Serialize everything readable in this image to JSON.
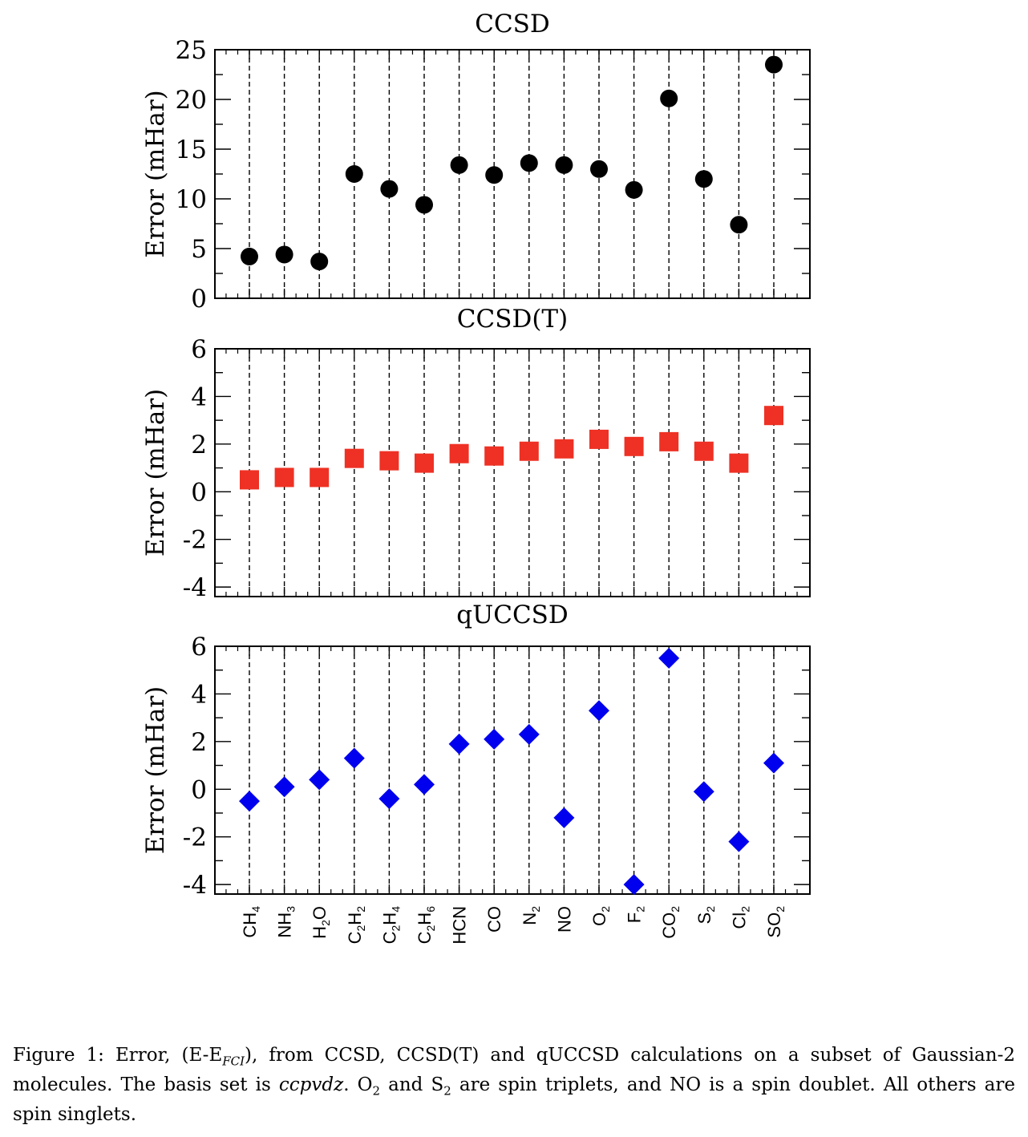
{
  "chart_data": [
    {
      "type": "scatter",
      "title": "CCSD",
      "ylabel": "Error (mHar)",
      "ylim": [
        0,
        25
      ],
      "yticks": [
        "0",
        "5",
        "10",
        "15",
        "20",
        "25"
      ],
      "marker": "circle",
      "color": "#000000",
      "categories": [
        "CH4",
        "NH3",
        "H2O",
        "C2H2",
        "C2H4",
        "C2H6",
        "HCN",
        "CO",
        "N2",
        "NO",
        "O2",
        "F2",
        "CO2",
        "S2",
        "Cl2",
        "SO2"
      ],
      "values": [
        4.2,
        4.4,
        3.7,
        12.5,
        11.0,
        9.4,
        13.4,
        12.4,
        13.6,
        13.4,
        13.0,
        10.9,
        20.1,
        12.0,
        7.4,
        23.5
      ]
    },
    {
      "type": "scatter",
      "title": "CCSD(T)",
      "ylabel": "Error (mHar)",
      "ylim": [
        -4.4,
        6
      ],
      "yticks": [
        "-4",
        "-2",
        "0",
        "2",
        "4",
        "6"
      ],
      "marker": "square",
      "color": "#ee3124",
      "categories": [
        "CH4",
        "NH3",
        "H2O",
        "C2H2",
        "C2H4",
        "C2H6",
        "HCN",
        "CO",
        "N2",
        "NO",
        "O2",
        "F2",
        "CO2",
        "S2",
        "Cl2",
        "SO2"
      ],
      "values": [
        0.5,
        0.6,
        0.6,
        1.4,
        1.3,
        1.2,
        1.6,
        1.5,
        1.7,
        1.8,
        2.2,
        1.9,
        2.1,
        1.7,
        1.2,
        3.2
      ]
    },
    {
      "type": "scatter",
      "title": "qUCCSD",
      "ylabel": "Error (mHar)",
      "ylim": [
        -4.4,
        6
      ],
      "yticks": [
        "-4",
        "-2",
        "0",
        "2",
        "4",
        "6"
      ],
      "marker": "diamond",
      "color": "#0000ee",
      "categories": [
        "CH4",
        "NH3",
        "H2O",
        "C2H2",
        "C2H4",
        "C2H6",
        "HCN",
        "CO",
        "N2",
        "NO",
        "O2",
        "F2",
        "CO2",
        "S2",
        "Cl2",
        "SO2"
      ],
      "values": [
        -0.5,
        0.1,
        0.4,
        1.3,
        -0.4,
        0.2,
        1.9,
        2.1,
        2.3,
        -1.2,
        3.3,
        -4.0,
        5.5,
        -0.1,
        -2.2,
        1.1
      ]
    }
  ],
  "xtick_labels": [
    {
      "main": "CH",
      "sub": "4",
      "rest": ""
    },
    {
      "main": "NH",
      "sub": "3",
      "rest": ""
    },
    {
      "main": "H",
      "sub": "2",
      "rest": "O"
    },
    {
      "main": "C",
      "sub": "2",
      "rest": "H",
      "sub2": "2"
    },
    {
      "main": "C",
      "sub": "2",
      "rest": "H",
      "sub2": "4"
    },
    {
      "main": "C",
      "sub": "2",
      "rest": "H",
      "sub2": "6"
    },
    {
      "main": "HCN",
      "sub": "",
      "rest": ""
    },
    {
      "main": "CO",
      "sub": "",
      "rest": ""
    },
    {
      "main": "N",
      "sub": "2",
      "rest": ""
    },
    {
      "main": "NO",
      "sub": "",
      "rest": ""
    },
    {
      "main": "O",
      "sub": "2",
      "rest": ""
    },
    {
      "main": "F",
      "sub": "2",
      "rest": ""
    },
    {
      "main": "CO",
      "sub": "2",
      "rest": ""
    },
    {
      "main": "S",
      "sub": "2",
      "rest": ""
    },
    {
      "main": "Cl",
      "sub": "2",
      "rest": ""
    },
    {
      "main": "SO",
      "sub": "2",
      "rest": ""
    }
  ],
  "caption": {
    "t1": "Figure 1: Error, (E-E",
    "fci": "FCI",
    "t2": "), from CCSD, CCSD(T) and qUCCSD calculations on a subset of Gaussian-2 molecules. The basis set is ",
    "basis": "ccpvdz",
    "t3": ". O",
    "o2sub": "2",
    "t4": " and S",
    "s2sub": "2",
    "t5": " are spin triplets, and NO is a spin doublet. All others are spin singlets."
  }
}
